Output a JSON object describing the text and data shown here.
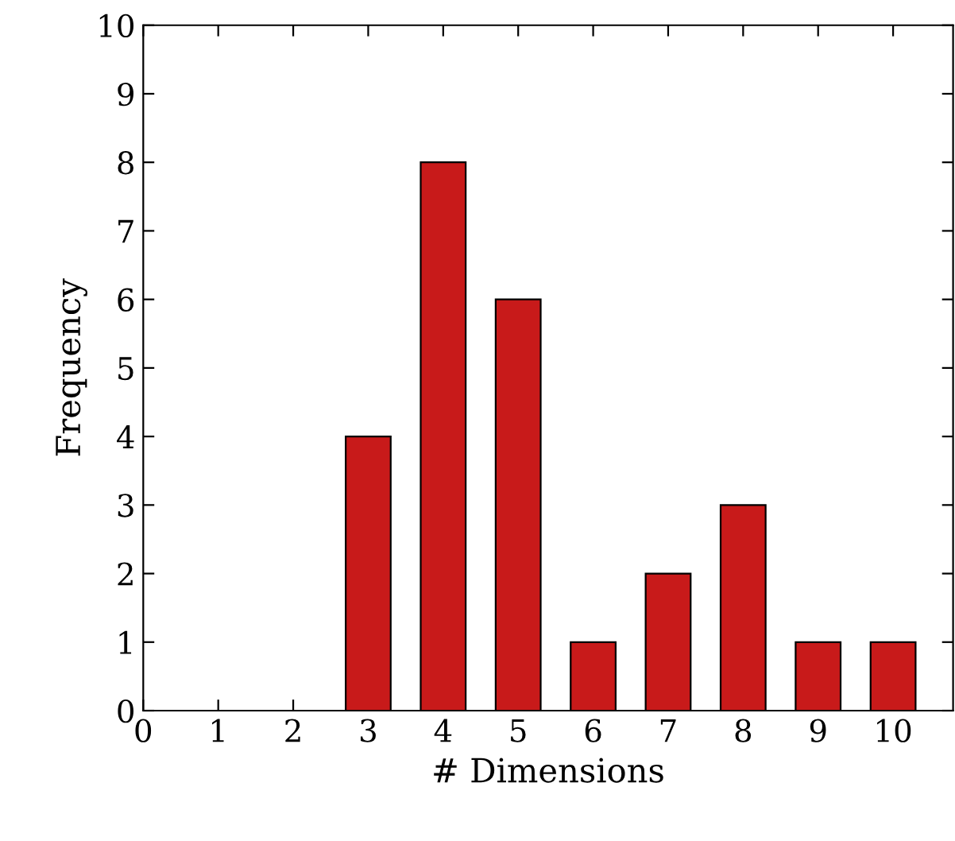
{
  "chart_data": {
    "type": "bar",
    "xlabel": "# Dimensions",
    "ylabel": "Frequency",
    "x": [
      3,
      4,
      5,
      6,
      7,
      8,
      9,
      10
    ],
    "values": [
      4,
      8,
      6,
      1,
      2,
      3,
      1,
      1
    ],
    "color": "#c81a1a",
    "xlim": [
      0,
      10.8
    ],
    "xticks": [
      0,
      1,
      2,
      3,
      4,
      5,
      6,
      7,
      8,
      9,
      10
    ],
    "ylim": [
      0,
      10
    ],
    "yticks": [
      0,
      1,
      2,
      3,
      4,
      5,
      6,
      7,
      8,
      9,
      10
    ],
    "grid": false,
    "legend": false
  }
}
